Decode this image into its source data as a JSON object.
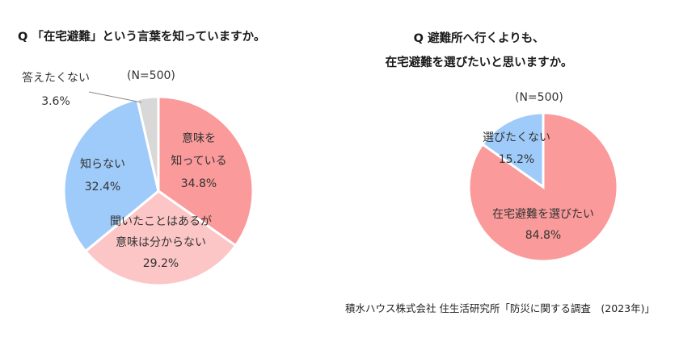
{
  "source": "積水ハウス株式会社 住生活研究所「防災に関する調査　(2023年)」",
  "chart_data": [
    {
      "type": "pie",
      "title": "Q 「在宅避難」という言葉を知っていますか。",
      "n_label": "(N=500)",
      "slices": [
        {
          "name": "意味を知っている",
          "lines": [
            "意味を",
            "知っている"
          ],
          "value": 34.8,
          "value_label": "34.8%",
          "color": "#fa9a9a"
        },
        {
          "name": "聞いたことはあるが意味は分からない",
          "lines": [
            "聞いたことはあるが",
            "意味は分からない"
          ],
          "value": 29.2,
          "value_label": "29.2%",
          "color": "#fcc6c6"
        },
        {
          "name": "知らない",
          "lines": [
            "知らない"
          ],
          "value": 32.4,
          "value_label": "32.4%",
          "color": "#9ecbf9"
        },
        {
          "name": "答えたくない",
          "lines": [
            "答えたくない"
          ],
          "value": 3.6,
          "value_label": "3.6%",
          "color": "#d8d8d8"
        }
      ]
    },
    {
      "type": "pie",
      "title_lines": [
        "Q 避難所へ行くよりも、",
        "在宅避難を選びたいと思いますか。"
      ],
      "n_label": "(N=500)",
      "slices": [
        {
          "name": "在宅避難を選びたい",
          "lines": [
            "在宅避難を選びたい"
          ],
          "value": 84.8,
          "value_label": "84.8%",
          "color": "#fa9a9a"
        },
        {
          "name": "選びたくない",
          "lines": [
            "選びたくない"
          ],
          "value": 15.2,
          "value_label": "15.2%",
          "color": "#9ecbf9"
        }
      ]
    }
  ]
}
